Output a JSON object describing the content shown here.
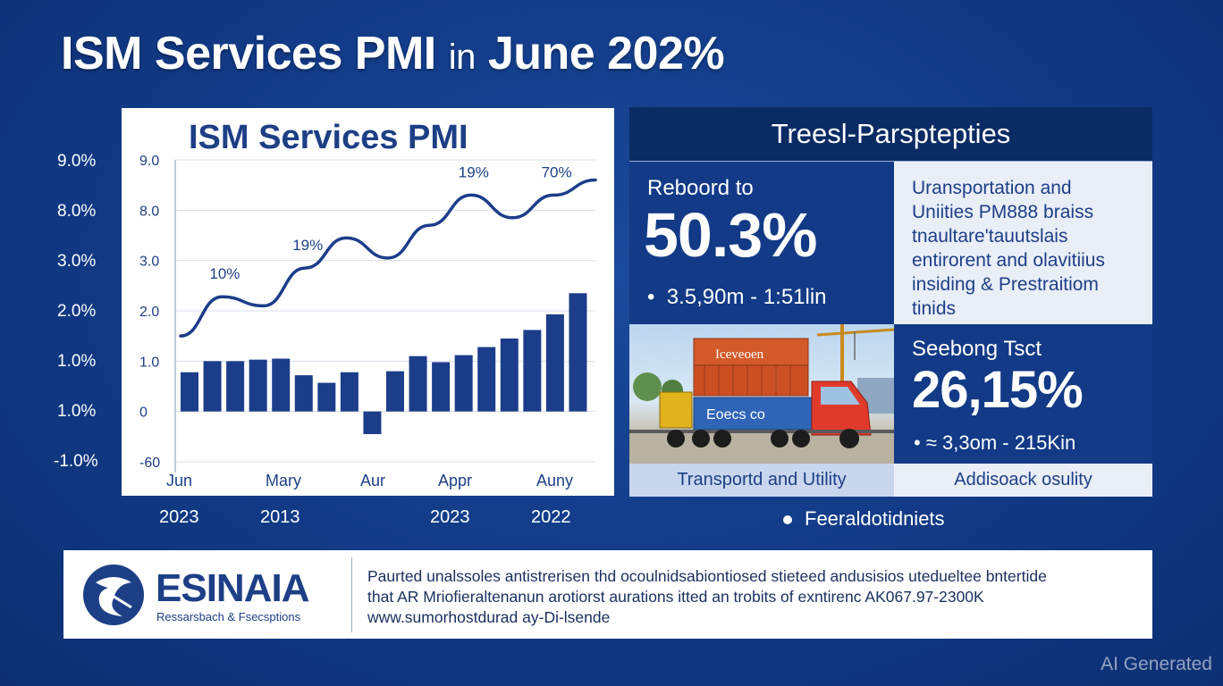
{
  "title": {
    "main": "ISM Services PMI",
    "in": "in",
    "rest": "June 202%"
  },
  "chart_data": {
    "type": "bar+line",
    "title": "ISM Services PMI",
    "outer_y_ticks": [
      "9.0%",
      "8.0%",
      "3.0%",
      "2.0%",
      "1.0%",
      "1.0%",
      "-1.0%"
    ],
    "inner_y_ticks": [
      "9.0",
      "8.0",
      "3.0",
      "2.0",
      "1.0",
      "0",
      "-60"
    ],
    "x_ticks": [
      "Jun",
      "Mary",
      "Aur",
      "Appr",
      "Auny"
    ],
    "year_labels": [
      "2023",
      "2013",
      "2023",
      "2022"
    ],
    "bars": [
      0.78,
      1.0,
      1.0,
      1.03,
      1.05,
      0.72,
      0.57,
      0.78,
      -0.45,
      0.8,
      1.1,
      0.98,
      1.12,
      1.28,
      1.45,
      1.62,
      1.93,
      2.35
    ],
    "line": [
      1.5,
      2.28,
      2.1,
      2.85,
      3.45,
      3.05,
      3.7,
      4.3,
      3.85,
      4.3,
      4.6
    ],
    "ylim": [
      -1.0,
      5.0
    ],
    "annotations": [
      "10%",
      "19%",
      "19%",
      "70%"
    ],
    "colors": {
      "bars": "#1c3d8a",
      "line": "#1c3d8a"
    }
  },
  "panel": {
    "header": "Treesl-Parsptepties",
    "rebound_label": "Reboord to",
    "rebound_value": "50.3%",
    "rebound_sub": "3.5,90m - 1:51lin",
    "transport_lines": [
      "Uransportation and",
      "Uniities PM888 braiss",
      "tnaultare'tauutslais",
      "entirorent and olavitiius",
      "insiding & Prestraitiom",
      "tinids"
    ],
    "truck_box_top": "Iceveoen",
    "truck_box_bottom": "Eoecs co",
    "secondary_label": "Seebong Tsct",
    "secondary_value": "26,15%",
    "secondary_sub": "≈ 3,3om - 215Kin",
    "caption_left": "Transportd and Utility",
    "caption_right": "Addisoack osulity"
  },
  "bullet_note": "Feeraldotidniets",
  "footer": {
    "brand": "ESINAIA",
    "tagline": "Ressarsbach & Fsecsptions",
    "lines": [
      "Paurted unalssoles antistrerisen thd ocoulnidsabiontiosed stieteed andusisios utedueltee bntertide",
      "that AR Mriofieraltenanun arotiorst aurations itted an  trobits of exntirenc AK067.97-2300K",
      "www.sumorhostdurad ay-Di-lsende"
    ]
  },
  "watermark": "AI Generated"
}
